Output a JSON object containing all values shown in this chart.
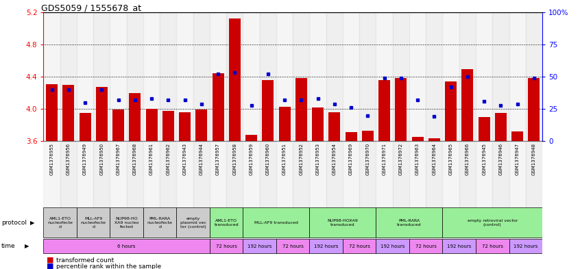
{
  "title": "GDS5059 / 1555678_at",
  "samples": [
    "GSM1376955",
    "GSM1376956",
    "GSM1376949",
    "GSM1376950",
    "GSM1376967",
    "GSM1376968",
    "GSM1376961",
    "GSM1376962",
    "GSM1376943",
    "GSM1376944",
    "GSM1376957",
    "GSM1376958",
    "GSM1376959",
    "GSM1376960",
    "GSM1376951",
    "GSM1376952",
    "GSM1376953",
    "GSM1376954",
    "GSM1376969",
    "GSM1376970",
    "GSM1376971",
    "GSM1376972",
    "GSM1376963",
    "GSM1376964",
    "GSM1376965",
    "GSM1376966",
    "GSM1376945",
    "GSM1376946",
    "GSM1376947",
    "GSM1376948"
  ],
  "red_values": [
    4.31,
    4.3,
    3.95,
    4.27,
    3.99,
    4.2,
    4.0,
    3.98,
    3.96,
    3.99,
    4.44,
    5.12,
    3.68,
    4.36,
    4.03,
    4.38,
    4.02,
    3.96,
    3.71,
    3.73,
    4.36,
    4.38,
    3.65,
    3.64,
    4.34,
    4.49,
    3.9,
    3.95,
    3.72,
    4.38
  ],
  "blue_values": [
    40,
    40,
    30,
    40,
    32,
    32,
    33,
    32,
    32,
    29,
    52,
    53,
    28,
    52,
    32,
    32,
    33,
    29,
    26,
    20,
    49,
    49,
    32,
    19,
    42,
    50,
    31,
    28,
    29,
    49
  ],
  "ymin": 3.6,
  "ymax": 5.2,
  "y_ticks": [
    3.6,
    4.0,
    4.4,
    4.8,
    5.2
  ],
  "y_right_ticks": [
    0,
    25,
    50,
    75,
    100
  ],
  "y_right_labels": [
    "0",
    "25",
    "50",
    "75",
    "100%"
  ],
  "dotted_lines": [
    4.0,
    4.4,
    4.8
  ],
  "bar_color": "#cc0000",
  "square_color": "#0000cc",
  "bg_color": "#ffffff",
  "col_bg_even": "#e8e8e8",
  "col_bg_odd": "#d8d8d8",
  "protocol_labels": [
    {
      "text": "AML1-ETO\nnucleofecte\nd",
      "start": 0,
      "end": 1,
      "bg": "#cccccc"
    },
    {
      "text": "MLL-AF9\nnucleofecte\nd",
      "start": 2,
      "end": 3,
      "bg": "#cccccc"
    },
    {
      "text": "NUP98-HO\nXA9 nucleo\nfected",
      "start": 4,
      "end": 5,
      "bg": "#cccccc"
    },
    {
      "text": "PML-RARA\nnucleofecte\nd",
      "start": 6,
      "end": 7,
      "bg": "#cccccc"
    },
    {
      "text": "empty\nplasmid vec\ntor (control)",
      "start": 8,
      "end": 9,
      "bg": "#cccccc"
    },
    {
      "text": "AML1-ETO\ntransduced",
      "start": 10,
      "end": 11,
      "bg": "#99ee99"
    },
    {
      "text": "MLL-AF9 transduced",
      "start": 12,
      "end": 15,
      "bg": "#99ee99"
    },
    {
      "text": "NUP98-HOXA9\ntransduced",
      "start": 16,
      "end": 19,
      "bg": "#99ee99"
    },
    {
      "text": "PML-RARA\ntransduced",
      "start": 20,
      "end": 23,
      "bg": "#99ee99"
    },
    {
      "text": "empty retroviral vector\n(control)",
      "start": 24,
      "end": 29,
      "bg": "#99ee99"
    }
  ],
  "time_labels": [
    {
      "text": "6 hours",
      "start": 0,
      "end": 9,
      "bg": "#ee88ee"
    },
    {
      "text": "72 hours",
      "start": 10,
      "end": 11,
      "bg": "#ee88ee"
    },
    {
      "text": "192 hours",
      "start": 12,
      "end": 13,
      "bg": "#cc99ff"
    },
    {
      "text": "72 hours",
      "start": 14,
      "end": 15,
      "bg": "#ee88ee"
    },
    {
      "text": "192 hours",
      "start": 16,
      "end": 17,
      "bg": "#cc99ff"
    },
    {
      "text": "72 hours",
      "start": 18,
      "end": 19,
      "bg": "#ee88ee"
    },
    {
      "text": "192 hours",
      "start": 20,
      "end": 21,
      "bg": "#cc99ff"
    },
    {
      "text": "72 hours",
      "start": 22,
      "end": 23,
      "bg": "#ee88ee"
    },
    {
      "text": "192 hours",
      "start": 24,
      "end": 25,
      "bg": "#cc99ff"
    },
    {
      "text": "72 hours",
      "start": 26,
      "end": 27,
      "bg": "#ee88ee"
    },
    {
      "text": "192 hours",
      "start": 28,
      "end": 29,
      "bg": "#cc99ff"
    }
  ],
  "legend_red": "transformed count",
  "legend_blue": "percentile rank within the sample",
  "label_protocol": "protocol",
  "label_time": "time"
}
